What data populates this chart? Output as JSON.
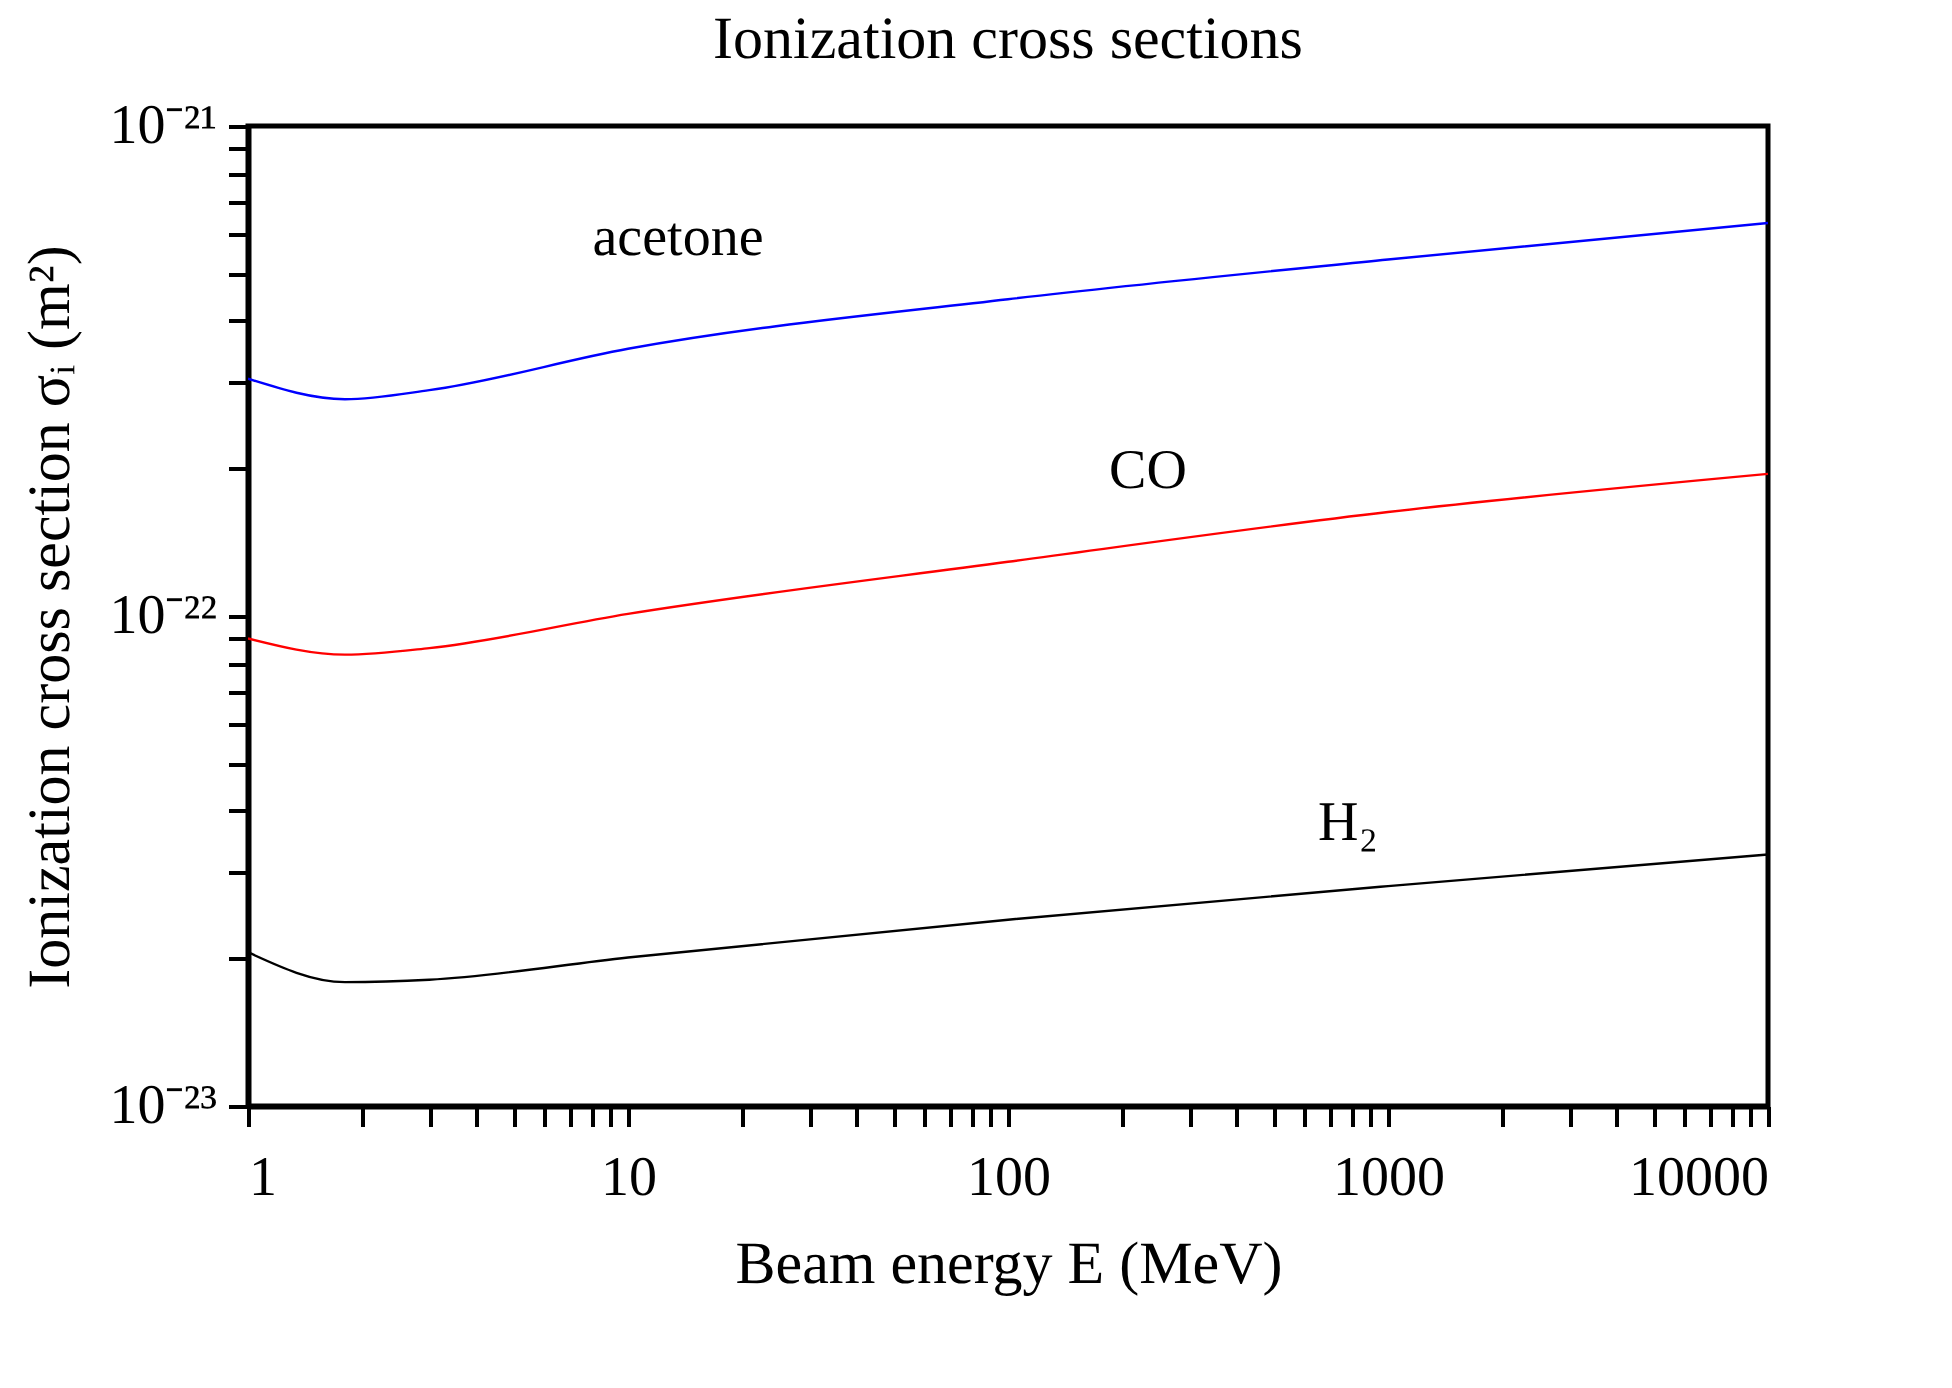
{
  "chart_data": {
    "type": "line",
    "title": "Ionization cross sections",
    "xlabel": "Beam energy E (MeV)",
    "ylabel": "Ionization cross section σᵢ (m²)",
    "log": "xy",
    "grid": false,
    "xlim": [
      1,
      10000
    ],
    "ylim": [
      1e-23,
      1e-21
    ],
    "xticks": [
      1,
      {
        "value": 2,
        "label": null
      },
      {
        "value": 3,
        "label": null
      },
      {
        "value": 4,
        "label": null
      },
      {
        "value": 5,
        "label": null
      },
      {
        "value": 6,
        "label": null
      },
      {
        "value": 7,
        "label": null
      },
      {
        "value": 8,
        "label": null
      },
      {
        "value": 9,
        "label": null
      },
      10,
      {
        "value": 20,
        "label": null
      },
      {
        "value": 30,
        "label": null
      },
      {
        "value": 40,
        "label": null
      },
      {
        "value": 50,
        "label": null
      },
      {
        "value": 60,
        "label": null
      },
      {
        "value": 70,
        "label": null
      },
      {
        "value": 80,
        "label": null
      },
      {
        "value": 90,
        "label": null
      },
      100,
      {
        "value": 200,
        "label": null
      },
      {
        "value": 300,
        "label": null
      },
      {
        "value": 400,
        "label": null
      },
      {
        "value": 500,
        "label": null
      },
      {
        "value": 600,
        "label": null
      },
      {
        "value": 700,
        "label": null
      },
      {
        "value": 800,
        "label": null
      },
      {
        "value": 900,
        "label": null
      },
      1000,
      {
        "value": 2000,
        "label": null
      },
      {
        "value": 3000,
        "label": null
      },
      {
        "value": 4000,
        "label": null
      },
      {
        "value": 5000,
        "label": null
      },
      {
        "value": 6000,
        "label": null
      },
      {
        "value": 7000,
        "label": null
      },
      {
        "value": 8000,
        "label": null
      },
      {
        "value": 9000,
        "label": null
      },
      10000
    ],
    "yticks": [
      {
        "value": 1e-23,
        "label": "10⁻²³"
      },
      {
        "value": 2e-23,
        "label": null
      },
      {
        "value": 3e-23,
        "label": null
      },
      {
        "value": 4e-23,
        "label": null
      },
      {
        "value": 5e-23,
        "label": null
      },
      {
        "value": 6e-23,
        "label": null
      },
      {
        "value": 7e-23,
        "label": null
      },
      {
        "value": 8e-23,
        "label": null
      },
      {
        "value": 9e-23,
        "label": null
      },
      {
        "value": 1e-22,
        "label": "10⁻²²"
      },
      {
        "value": 2e-22,
        "label": null
      },
      {
        "value": 3e-22,
        "label": null
      },
      {
        "value": 4e-22,
        "label": null
      },
      {
        "value": 5e-22,
        "label": null
      },
      {
        "value": 6e-22,
        "label": null
      },
      {
        "value": 7e-22,
        "label": null
      },
      {
        "value": 8e-22,
        "label": null
      },
      {
        "value": 9e-22,
        "label": null
      },
      {
        "value": 1e-21,
        "label": "10⁻²¹"
      }
    ],
    "x": [
      1,
      1.8,
      3,
      10,
      100,
      1000,
      10000
    ],
    "series": [
      {
        "name": "acetone",
        "color": "#0000ff",
        "values": [
          3.05e-22,
          2.77e-22,
          2.89e-22,
          3.51e-22,
          4.43e-22,
          5.34e-22,
          6.34e-22
        ]
      },
      {
        "name": "CO",
        "color": "#ff0000",
        "values": [
          9e-23,
          8.34e-23,
          8.6e-23,
          1.01e-22,
          1.29e-22,
          1.63e-22,
          1.95e-22
        ]
      },
      {
        "name": "H₂",
        "color": "#000000",
        "values": [
          2.06e-23,
          1.79e-23,
          1.81e-23,
          2.01e-23,
          2.4e-23,
          2.81e-23,
          3.26e-23
        ]
      }
    ]
  }
}
